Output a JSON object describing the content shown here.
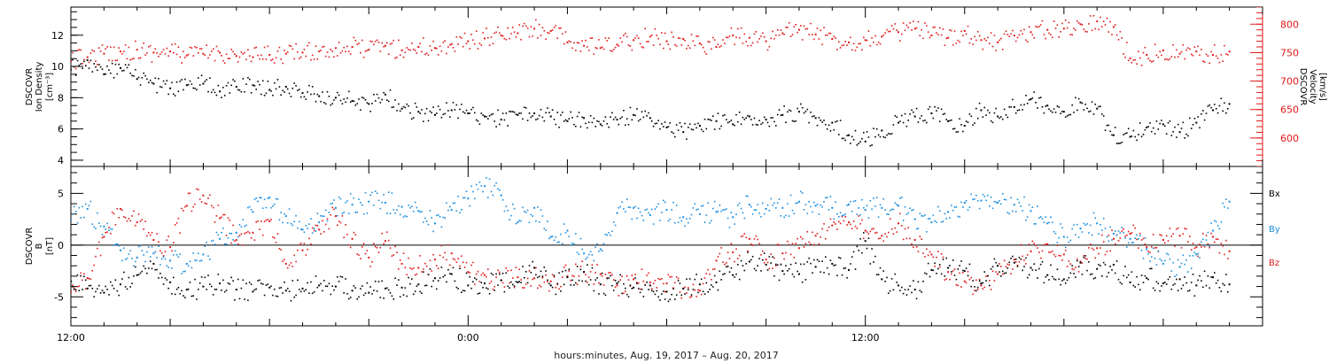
{
  "colors": {
    "density": "#000000",
    "velocity": "#e11919",
    "bx": "#000000",
    "by": "#1a8fe0",
    "bz": "#e11919"
  },
  "xaxis": {
    "caption": "hours:minutes, Aug. 19, 2017 – Aug. 20, 2017",
    "range_hours": [
      0,
      36
    ],
    "major_ticks": [
      0,
      12,
      24
    ],
    "major_tick_labels": [
      "12:00",
      "0:00",
      "12:00"
    ]
  },
  "chart_data": [
    {
      "type": "scatter",
      "panel": "plasma",
      "ylabel_left": [
        "DSCOVR",
        "Ion Density",
        "[cm⁻³]"
      ],
      "ylabel_right": [
        "DSCOVR",
        "Velocity",
        "[km/s]"
      ],
      "left_axis": {
        "range": [
          3.6,
          13.8
        ],
        "ticks": [
          4,
          6,
          8,
          10,
          12
        ]
      },
      "right_axis": {
        "range": [
          550,
          830
        ],
        "ticks": [
          600,
          650,
          700,
          750,
          800
        ]
      },
      "series": [
        {
          "name": "density",
          "axis": "left",
          "x": [
            0.0,
            0.5,
            1.0,
            1.5,
            2.0,
            2.5,
            3.0,
            3.5,
            4.0,
            4.5,
            5.0,
            5.5,
            6.0,
            6.5,
            7.0,
            7.5,
            8.0,
            8.5,
            9.0,
            9.5,
            10.0,
            10.5,
            11.0,
            11.5,
            12.0,
            12.5,
            13.0,
            13.5,
            14.0,
            14.5,
            15.0,
            15.5,
            16.0,
            16.5,
            17.0,
            17.5,
            18.0,
            18.5,
            19.0,
            19.5,
            20.0,
            20.5,
            21.0,
            21.5,
            22.0,
            22.5,
            23.0,
            23.5,
            24.0,
            24.5,
            25.0,
            25.5,
            26.0,
            26.5,
            27.0,
            27.5,
            28.0,
            28.5,
            29.0,
            29.5,
            30.0,
            30.5,
            31.0,
            31.5,
            32.0,
            32.5,
            33.0,
            33.5,
            34.0,
            34.5,
            35.0
          ],
          "y": [
            9.8,
            10.4,
            9.5,
            9.9,
            9.2,
            8.9,
            8.6,
            8.8,
            8.9,
            8.4,
            8.7,
            8.8,
            8.5,
            8.7,
            8.3,
            8.1,
            8.0,
            7.8,
            7.6,
            8.2,
            7.3,
            7.1,
            6.9,
            7.2,
            7.0,
            6.8,
            6.6,
            6.9,
            7.0,
            6.8,
            6.5,
            6.7,
            6.3,
            6.6,
            6.9,
            6.7,
            6.1,
            5.8,
            6.2,
            6.5,
            6.3,
            6.8,
            6.6,
            6.9,
            7.1,
            6.7,
            6.4,
            5.6,
            5.2,
            5.9,
            6.4,
            6.8,
            7.0,
            6.5,
            6.2,
            7.2,
            6.8,
            7.4,
            7.9,
            7.5,
            7.1,
            7.7,
            7.3,
            5.6,
            5.5,
            6.1,
            6.3,
            5.8,
            6.4,
            7.2,
            7.6
          ]
        },
        {
          "name": "velocity",
          "axis": "right",
          "x": [
            0.0,
            0.5,
            1.0,
            1.5,
            2.0,
            2.5,
            3.0,
            3.5,
            4.0,
            4.5,
            5.0,
            5.5,
            6.0,
            6.5,
            7.0,
            7.5,
            8.0,
            8.5,
            9.0,
            9.5,
            10.0,
            10.5,
            11.0,
            11.5,
            12.0,
            12.5,
            13.0,
            13.5,
            14.0,
            14.5,
            15.0,
            15.5,
            16.0,
            16.5,
            17.0,
            17.5,
            18.0,
            18.5,
            19.0,
            19.5,
            20.0,
            20.5,
            21.0,
            21.5,
            22.0,
            22.5,
            23.0,
            23.5,
            24.0,
            24.5,
            25.0,
            25.5,
            26.0,
            26.5,
            27.0,
            27.5,
            28.0,
            28.5,
            29.0,
            29.5,
            30.0,
            30.5,
            31.0,
            31.5,
            32.0,
            32.5,
            33.0,
            33.5,
            34.0,
            34.5,
            35.0
          ],
          "y": [
            735,
            742,
            748,
            752,
            755,
            750,
            752,
            745,
            748,
            750,
            744,
            742,
            746,
            748,
            750,
            752,
            758,
            760,
            755,
            762,
            754,
            760,
            758,
            765,
            770,
            775,
            780,
            784,
            792,
            788,
            768,
            762,
            758,
            764,
            772,
            778,
            770,
            774,
            766,
            760,
            780,
            776,
            770,
            784,
            790,
            782,
            774,
            768,
            772,
            778,
            786,
            792,
            780,
            776,
            788,
            772,
            768,
            780,
            786,
            790,
            792,
            800,
            805,
            795,
            740,
            746,
            754,
            748,
            752,
            746,
            752
          ]
        }
      ]
    },
    {
      "type": "scatter",
      "panel": "magnetic-field",
      "ylabel_left": [
        "DSCOVR",
        "B",
        "[nT]"
      ],
      "left_axis": {
        "range": [
          -7.8,
          7.6
        ],
        "ticks": [
          -5,
          0,
          5
        ]
      },
      "zero_line": true,
      "legend_placement": "right",
      "legend": [
        "Bx",
        "By",
        "Bz"
      ],
      "series": [
        {
          "name": "Bx",
          "x": [
            0.0,
            0.5,
            1.0,
            1.5,
            2.0,
            2.5,
            3.0,
            3.5,
            4.0,
            4.5,
            5.0,
            5.5,
            6.0,
            6.5,
            7.0,
            7.5,
            8.0,
            8.5,
            9.0,
            9.5,
            10.0,
            10.5,
            11.0,
            11.5,
            12.0,
            12.5,
            13.0,
            13.5,
            14.0,
            14.5,
            15.0,
            15.5,
            16.0,
            16.5,
            17.0,
            17.5,
            18.0,
            18.5,
            19.0,
            19.5,
            20.0,
            20.5,
            21.0,
            21.5,
            22.0,
            22.5,
            23.0,
            23.5,
            24.0,
            24.5,
            25.0,
            25.5,
            26.0,
            26.5,
            27.0,
            27.5,
            28.0,
            28.5,
            29.0,
            29.5,
            30.0,
            30.5,
            31.0,
            31.5,
            32.0,
            32.5,
            33.0,
            33.5,
            34.0,
            34.5,
            35.0
          ],
          "y": [
            -3.5,
            -4.2,
            -4.6,
            -3.8,
            -2.9,
            -1.8,
            -3.6,
            -4.3,
            -4.0,
            -3.7,
            -4.3,
            -4.5,
            -4.1,
            -4.4,
            -4.2,
            -3.9,
            -4.0,
            -4.4,
            -4.6,
            -4.2,
            -4.1,
            -3.8,
            -3.2,
            -2.8,
            -3.9,
            -3.7,
            -3.4,
            -3.6,
            -2.2,
            -3.9,
            -3.1,
            -2.6,
            -3.8,
            -3.7,
            -4.1,
            -3.9,
            -4.5,
            -4.2,
            -3.8,
            -3.6,
            -2.9,
            -1.6,
            -1.9,
            -2.5,
            -2.8,
            -2.1,
            -1.8,
            -2.4,
            0.4,
            -3.3,
            -3.9,
            -4.3,
            -2.4,
            -2.2,
            -2.5,
            -3.7,
            -2.0,
            -1.7,
            -2.2,
            -2.9,
            -3.3,
            -1.7,
            -2.3,
            -1.9,
            -3.6,
            -3.2,
            -3.7,
            -3.3,
            -3.9,
            -3.1,
            -3.8
          ]
        },
        {
          "name": "By",
          "x": [
            0.0,
            0.5,
            1.0,
            1.5,
            2.0,
            2.5,
            3.0,
            3.5,
            4.0,
            4.5,
            5.0,
            5.5,
            6.0,
            6.5,
            7.0,
            7.5,
            8.0,
            8.5,
            9.0,
            9.5,
            10.0,
            10.5,
            11.0,
            11.5,
            12.0,
            12.5,
            13.0,
            13.5,
            14.0,
            14.5,
            15.0,
            15.5,
            16.0,
            16.5,
            17.0,
            17.5,
            18.0,
            18.5,
            19.0,
            19.5,
            20.0,
            20.5,
            21.0,
            21.5,
            22.0,
            22.5,
            23.0,
            23.5,
            24.0,
            24.5,
            25.0,
            25.5,
            26.0,
            26.5,
            27.0,
            27.5,
            28.0,
            28.5,
            29.0,
            29.5,
            30.0,
            30.5,
            31.0,
            31.5,
            32.0,
            32.5,
            33.0,
            33.5,
            34.0,
            34.5,
            35.0
          ],
          "y": [
            2.5,
            3.5,
            1.8,
            -0.5,
            -1.2,
            -0.8,
            -1.5,
            -1.8,
            -0.9,
            0.6,
            1.2,
            3.2,
            4.6,
            2.8,
            1.5,
            2.2,
            3.6,
            3.9,
            4.2,
            4.1,
            3.7,
            3.3,
            2.1,
            3.4,
            4.5,
            5.7,
            4.8,
            2.2,
            3.6,
            0.8,
            1.4,
            -0.8,
            -0.4,
            3.1,
            3.6,
            2.9,
            3.4,
            2.7,
            3.0,
            3.2,
            2.7,
            3.9,
            3.5,
            3.6,
            4.2,
            3.8,
            3.6,
            3.9,
            3.4,
            3.6,
            3.8,
            2.5,
            2.2,
            3.2,
            4.1,
            4.3,
            4.1,
            3.9,
            3.3,
            2.1,
            0.8,
            1.6,
            2.1,
            1.1,
            0.6,
            -0.4,
            -1.8,
            -2.1,
            -0.9,
            1.4,
            4.2
          ]
        },
        {
          "name": "Bz",
          "x": [
            0.0,
            0.5,
            1.0,
            1.5,
            2.0,
            2.5,
            3.0,
            3.5,
            4.0,
            4.5,
            5.0,
            5.5,
            6.0,
            6.5,
            7.0,
            7.5,
            8.0,
            8.5,
            9.0,
            9.5,
            10.0,
            10.5,
            11.0,
            11.5,
            12.0,
            12.5,
            13.0,
            13.5,
            14.0,
            14.5,
            15.0,
            15.5,
            16.0,
            16.5,
            17.0,
            17.5,
            18.0,
            18.5,
            19.0,
            19.5,
            20.0,
            20.5,
            21.0,
            21.5,
            22.0,
            22.5,
            23.0,
            23.5,
            24.0,
            24.5,
            25.0,
            25.5,
            26.0,
            26.5,
            27.0,
            27.5,
            28.0,
            28.5,
            29.0,
            29.5,
            30.0,
            30.5,
            31.0,
            31.5,
            32.0,
            32.5,
            33.0,
            33.5,
            34.0,
            34.5,
            35.0
          ],
          "y": [
            -4.5,
            -3.2,
            0.8,
            3.5,
            2.2,
            0.5,
            -0.2,
            3.8,
            4.8,
            2.6,
            0.5,
            1.2,
            2.3,
            -1.8,
            -0.5,
            1.5,
            2.8,
            0.6,
            -1.2,
            0.4,
            -1.8,
            -2.2,
            -1.4,
            -0.8,
            -2.6,
            -2.9,
            -3.4,
            -3.1,
            -3.2,
            -3.5,
            -3.0,
            -2.6,
            -2.8,
            -3.9,
            -3.3,
            -3.6,
            -3.7,
            -4.2,
            -4.4,
            -1.5,
            -0.7,
            0.6,
            -1.4,
            -0.8,
            -0.3,
            0.9,
            1.9,
            2.2,
            1.4,
            0.9,
            2.1,
            0.5,
            -0.9,
            -2.6,
            -3.5,
            -3.9,
            -2.8,
            -1.4,
            -0.6,
            0.1,
            -0.9,
            -1.6,
            -0.3,
            0.6,
            1.1,
            -0.2,
            0.5,
            0.9,
            -0.2,
            0.8,
            -0.6
          ]
        }
      ]
    }
  ]
}
